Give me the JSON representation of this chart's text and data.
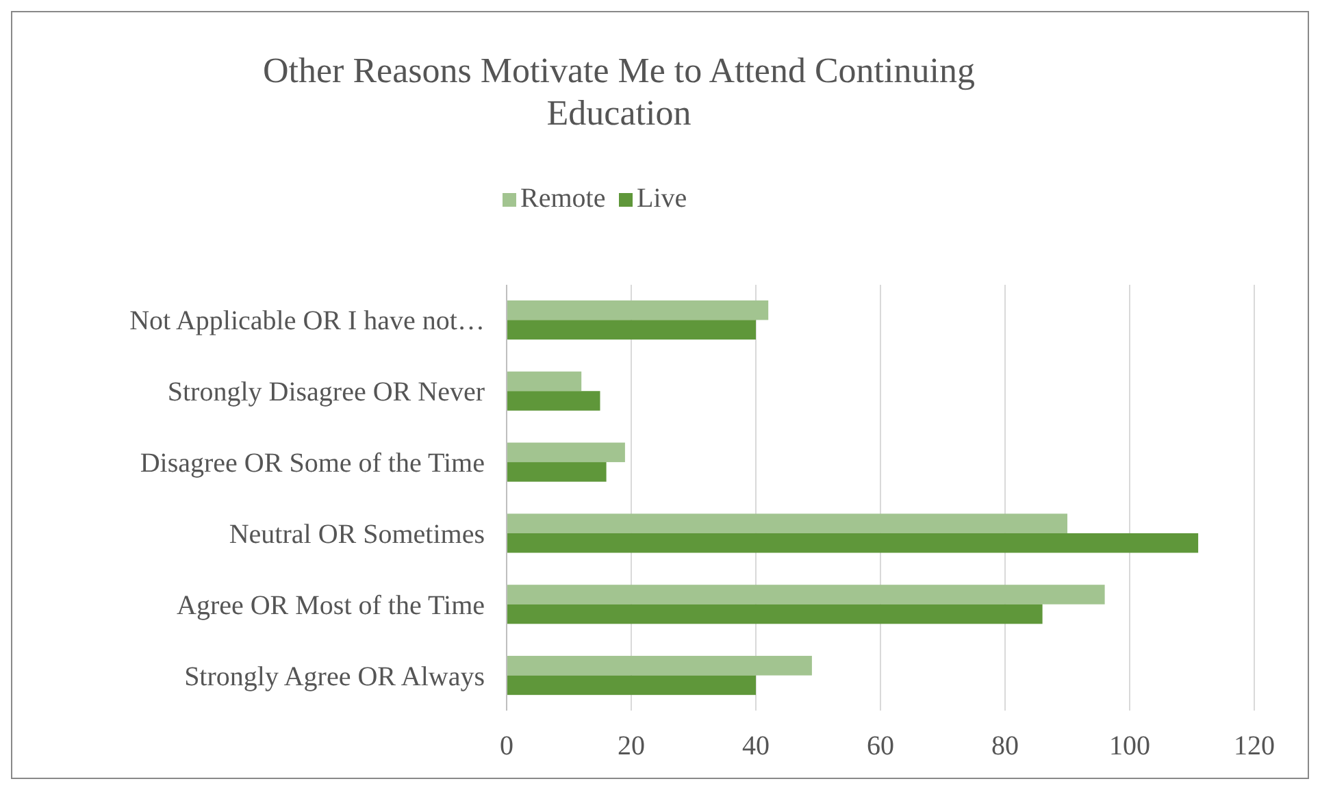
{
  "chart_data": {
    "type": "bar",
    "orientation": "horizontal",
    "title": "Other Reasons Motivate Me to Attend Continuing Education",
    "categories": [
      "Not Applicable OR I have not…",
      "Strongly Disagree OR Never",
      "Disagree OR Some of the Time",
      "Neutral OR Sometimes",
      "Agree OR Most of the Time",
      "Strongly Agree OR Always"
    ],
    "series": [
      {
        "name": "Remote",
        "color": "#a2c490",
        "values": [
          42,
          12,
          19,
          90,
          96,
          49
        ]
      },
      {
        "name": "Live",
        "color": "#5f973a",
        "values": [
          40,
          15,
          16,
          111,
          86,
          40
        ]
      }
    ],
    "xlim": [
      0,
      120
    ],
    "xticks": [
      0,
      20,
      40,
      60,
      80,
      100,
      120
    ],
    "grid": "x",
    "legend": "top"
  }
}
